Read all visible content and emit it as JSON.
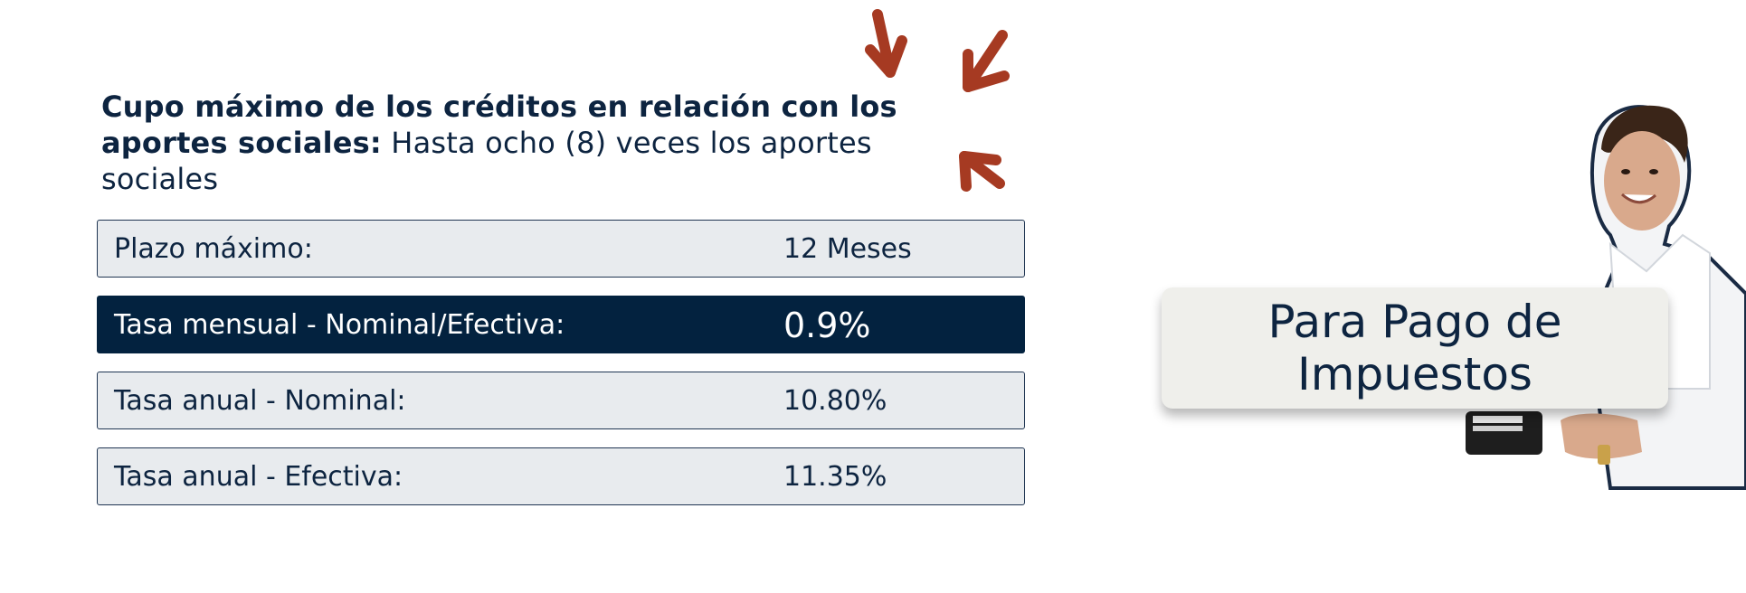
{
  "headline": {
    "bold_text": "Cupo máximo de los créditos en relación con los aportes sociales:",
    "regular_text": " Hasta ocho (8) veces los aportes sociales"
  },
  "rows": [
    {
      "label": "Plazo máximo:",
      "value": "12 Meses"
    },
    {
      "label": "Tasa mensual - Nominal/Efectiva:",
      "value": "0.9%"
    },
    {
      "label": "Tasa anual - Nominal:",
      "value": "10.80%"
    },
    {
      "label": "Tasa anual - Efectiva:",
      "value": "11.35%"
    }
  ],
  "callout": {
    "line1": "Para Pago de",
    "line2": "Impuestos"
  },
  "colors": {
    "navy": "#03223f",
    "row_background": "#e8ebee",
    "arrow": "#a63a22",
    "callout_background": "#efefeb"
  },
  "icons": [
    "arrow-icon",
    "person-illustration",
    "wallet-icon"
  ]
}
